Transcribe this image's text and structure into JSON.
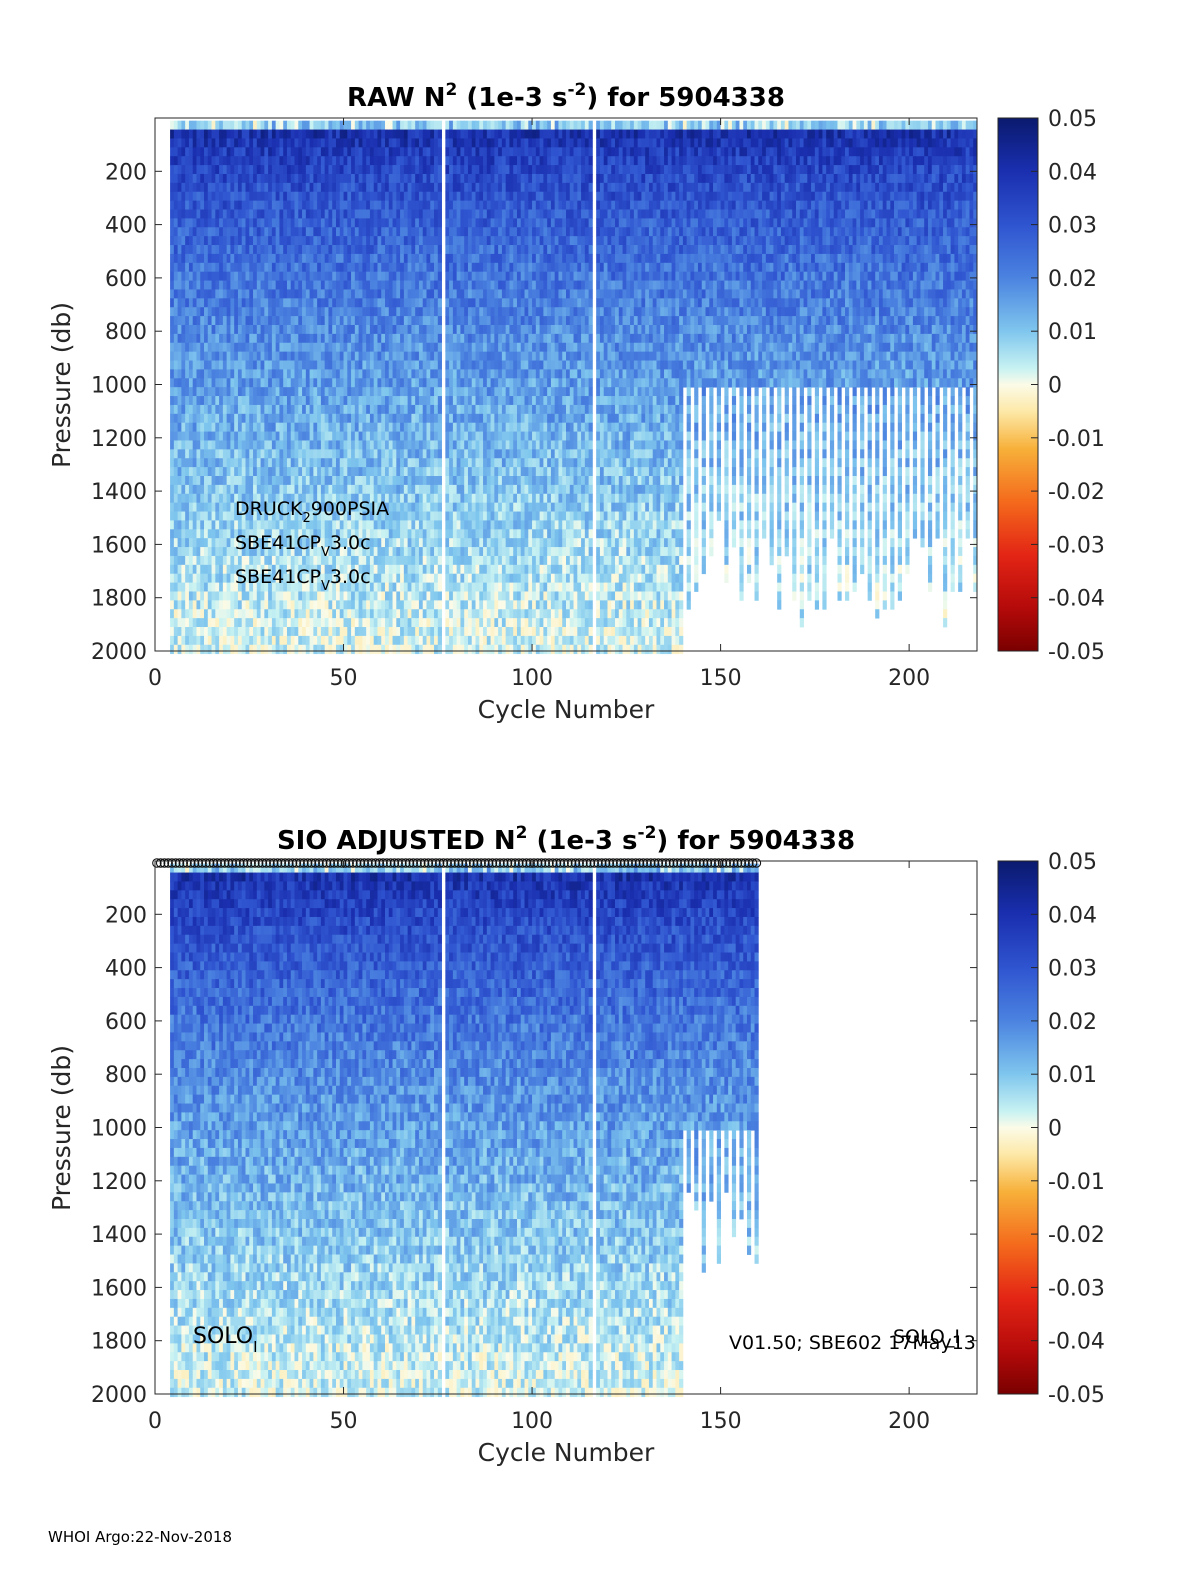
{
  "chart_data": [
    {
      "type": "heatmap",
      "title": "RAW N",
      "title_sup": "2",
      "title_mid": " (1e-3 s",
      "title_sup2": "-2",
      "title_end": ") for 5904338",
      "xlabel": "Cycle Number",
      "ylabel": "Pressure (db)",
      "xlim": [
        0,
        218
      ],
      "ylim": [
        2000,
        0
      ],
      "y_reversed": true,
      "xticks": [
        "0",
        "50",
        "100",
        "150",
        "200"
      ],
      "yticks": [
        "200",
        "400",
        "600",
        "800",
        "1000",
        "1200",
        "1400",
        "1600",
        "1800",
        "2000"
      ],
      "colorbar": {
        "range": [
          -0.05,
          0.05
        ],
        "ticks": [
          "0.05",
          "0.04",
          "0.03",
          "0.02",
          "0.01",
          "0",
          "-0.01",
          "-0.02",
          "-0.03",
          "-0.04",
          "-0.05"
        ],
        "colormap": "jet-like diverging (dark red to white to dark blue)"
      },
      "cycles_plotted": [
        1,
        218
      ],
      "annotations": [
        {
          "base": "DRUCK",
          "sub": "2",
          "rest": "900PSIA"
        },
        {
          "base": "SBE41CP",
          "sub": "V",
          "rest": "3.0c"
        },
        {
          "base": "SBE41CP",
          "sub": "V",
          "rest": "3.0c"
        }
      ],
      "grid": false,
      "legend": "none"
    },
    {
      "type": "heatmap",
      "title": "SIO  ADJUSTED N",
      "title_sup": "2",
      "title_mid": " (1e-3 s",
      "title_sup2": "-2",
      "title_end": ") for 5904338",
      "xlabel": "Cycle Number",
      "ylabel": "Pressure (db)",
      "xlim": [
        0,
        218
      ],
      "ylim": [
        2000,
        0
      ],
      "y_reversed": true,
      "xticks": [
        "0",
        "50",
        "100",
        "150",
        "200"
      ],
      "yticks": [
        "200",
        "400",
        "600",
        "800",
        "1000",
        "1200",
        "1400",
        "1600",
        "1800",
        "2000"
      ],
      "colorbar": {
        "range": [
          -0.05,
          0.05
        ],
        "ticks": [
          "0.05",
          "0.04",
          "0.03",
          "0.02",
          "0.01",
          "0",
          "-0.01",
          "-0.02",
          "-0.03",
          "-0.04",
          "-0.05"
        ],
        "colormap": "jet-like diverging (dark red to white to dark blue)"
      },
      "cycles_plotted": [
        1,
        160
      ],
      "qc_markers": "open circles along top edge for cycles 1-160",
      "annotations": [
        {
          "base": "SOLO",
          "sub": "I",
          "rest": ""
        },
        {
          "base": "V01.50; SBE602 17May13",
          "sub": "",
          "rest": ""
        },
        {
          "base": "SOLO_I",
          "sub": "",
          "rest": ""
        }
      ],
      "grid": false,
      "legend": "none"
    }
  ],
  "footer": "WHOI Argo:22-Nov-2018"
}
